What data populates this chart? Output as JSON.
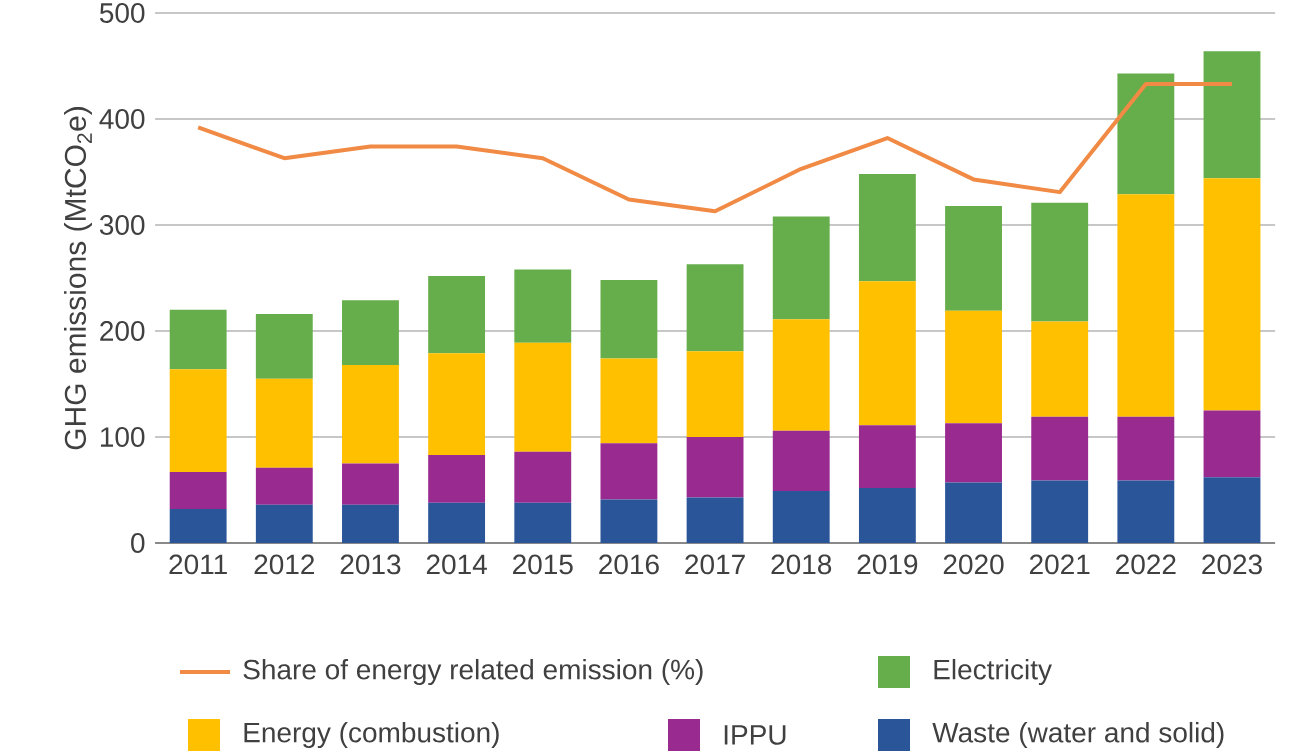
{
  "chart_data": {
    "type": "bar",
    "stacked": true,
    "ylabel": "GHG emissions (MtCO$_{2}$e)",
    "categories": [
      "2011",
      "2012",
      "2013",
      "2014",
      "2015",
      "2016",
      "2017",
      "2018",
      "2019",
      "2020",
      "2021",
      "2022",
      "2023"
    ],
    "series": [
      {
        "name": "Share of energy related emission (%)",
        "type": "line",
        "color": "#f08a44",
        "values": [
          392,
          363,
          374,
          374,
          363,
          324,
          313,
          353,
          382,
          343,
          331,
          433,
          433
        ]
      },
      {
        "name": "Waste (water and solid)",
        "color": "#2b5599",
        "values": [
          32,
          36,
          36,
          38,
          38,
          41,
          43,
          49,
          52,
          57,
          59,
          59,
          62
        ]
      },
      {
        "name": "IPPU",
        "color": "#992a8f",
        "values": [
          35,
          35,
          39,
          45,
          48,
          53,
          57,
          57,
          59,
          56,
          60,
          60,
          63
        ]
      },
      {
        "name": "Energy (combustion)",
        "color": "#ffc000",
        "values": [
          97,
          84,
          93,
          96,
          103,
          80,
          81,
          105,
          136,
          106,
          90,
          210,
          219
        ]
      },
      {
        "name": "Electricity",
        "color": "#66ad4b",
        "values": [
          56,
          61,
          61,
          73,
          69,
          74,
          82,
          97,
          101,
          99,
          112,
          114,
          120
        ]
      }
    ],
    "ylim": [
      0,
      500
    ],
    "yticks": [
      0,
      100,
      200,
      300,
      400,
      500
    ],
    "grid": "y",
    "legend": "bottom"
  }
}
